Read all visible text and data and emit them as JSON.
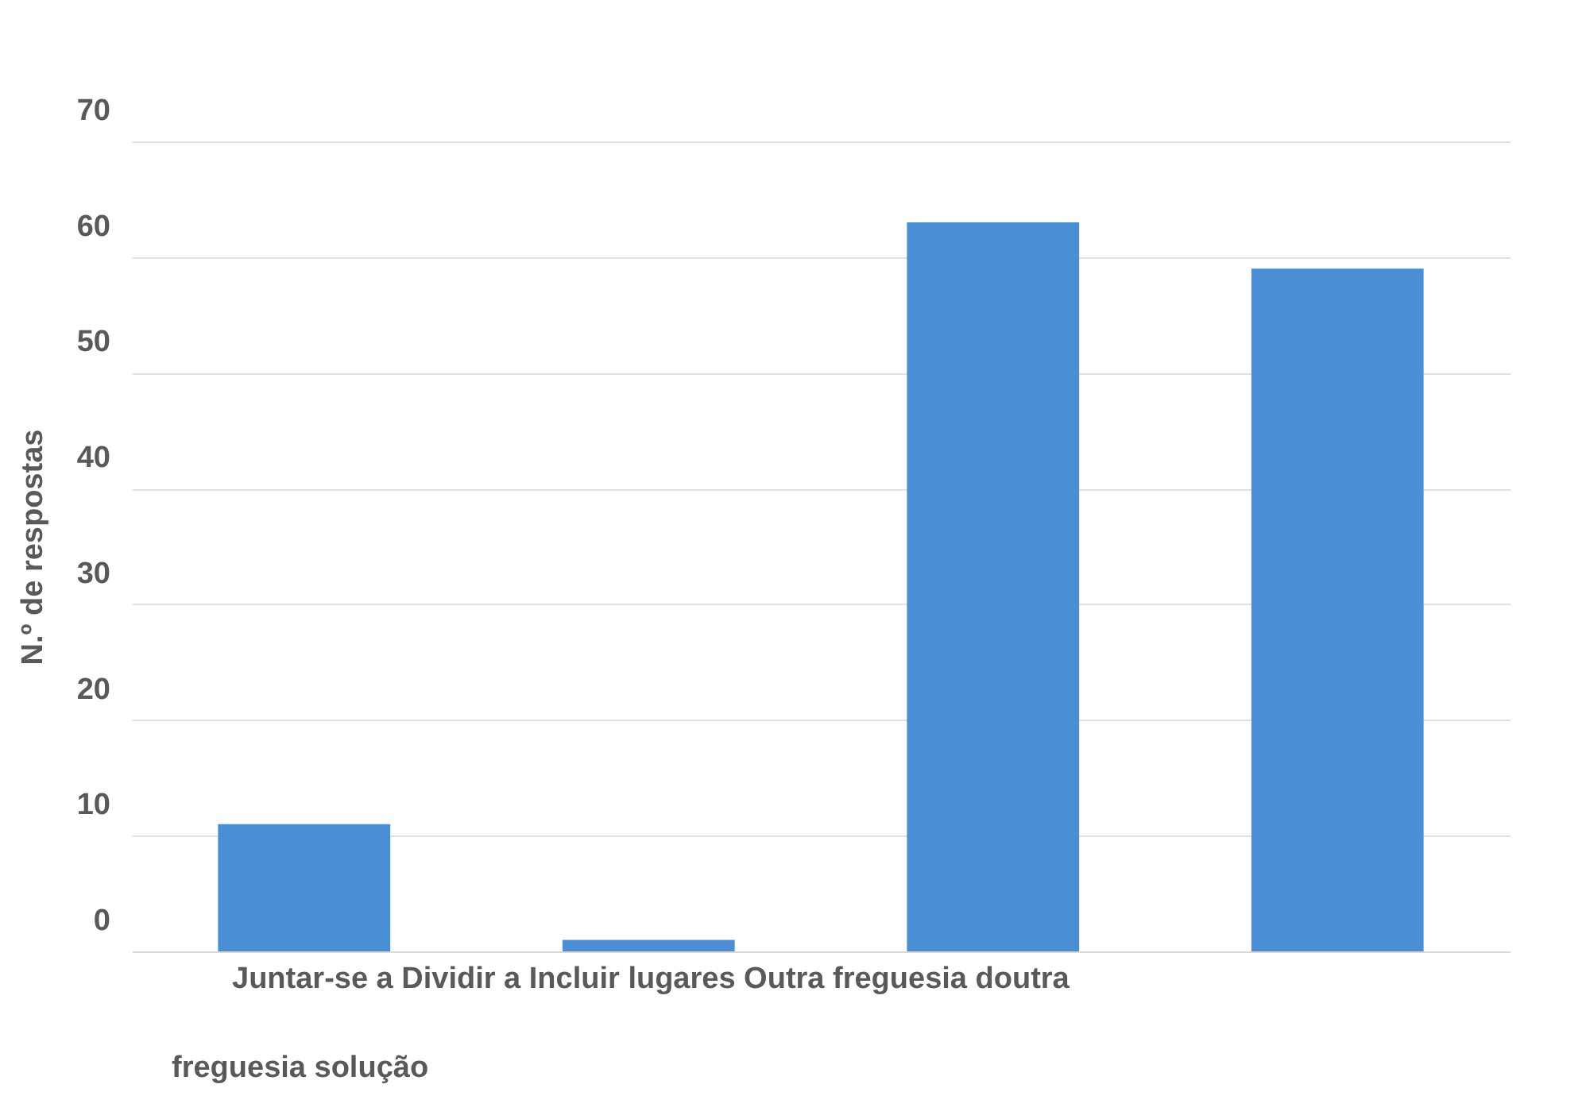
{
  "chart_data": {
    "type": "bar",
    "ylabel": "N.º de respostas",
    "categories": [
      null,
      null,
      null,
      null
    ],
    "values": [
      11,
      1,
      63,
      59
    ],
    "color": "#4a8fd6",
    "ylim": [
      0,
      70
    ],
    "yticks": [
      0,
      10,
      20,
      30,
      40,
      50,
      60,
      70
    ],
    "grid": "y",
    "annotations": [
      "Juntar-se a Dividir a Incluir lugares Outra freguesia doutra",
      "freguesia solução"
    ]
  }
}
